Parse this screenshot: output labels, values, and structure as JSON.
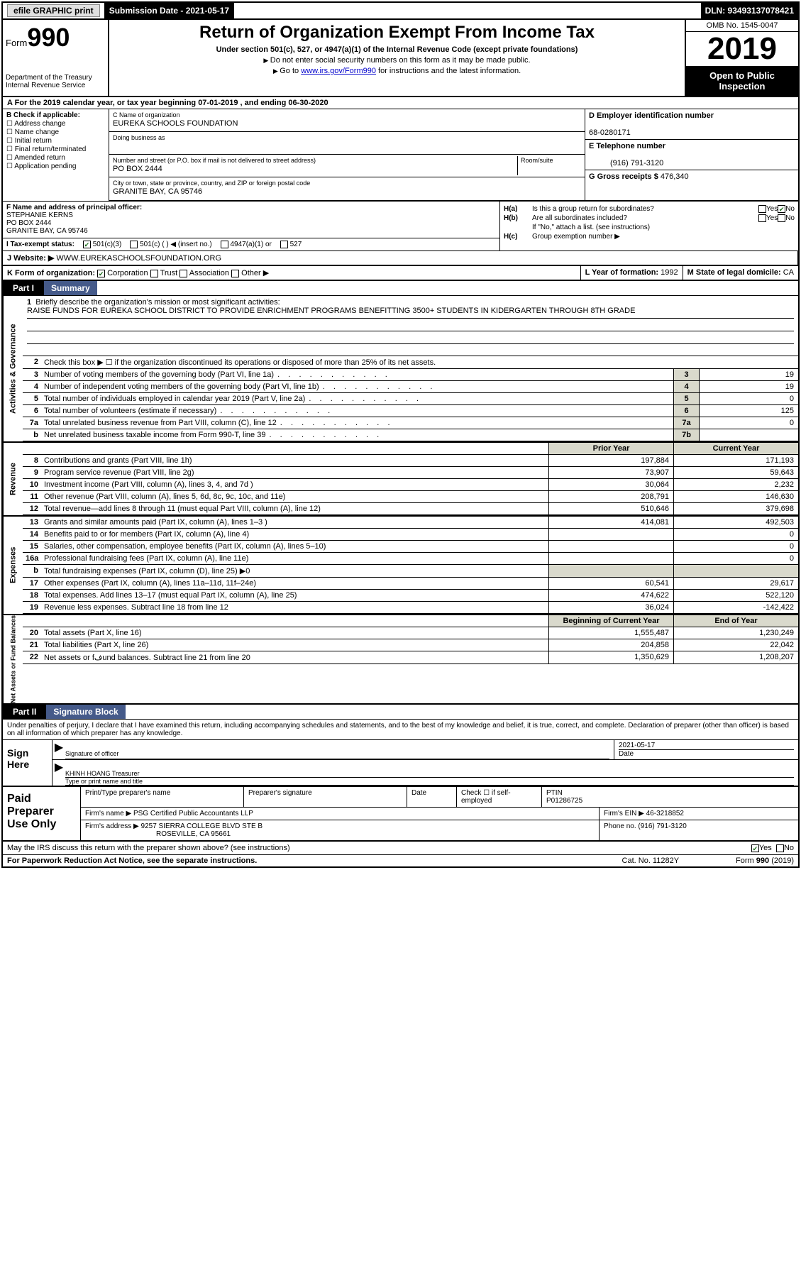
{
  "topbar": {
    "efile": "efile GRAPHIC print",
    "submission_label": "Submission Date - 2021-05-17",
    "dln": "DLN: 93493137078421"
  },
  "header": {
    "form_prefix": "Form",
    "form_number": "990",
    "dept": "Department of the Treasury\nInternal Revenue Service",
    "title": "Return of Organization Exempt From Income Tax",
    "subtitle": "Under section 501(c), 527, or 4947(a)(1) of the Internal Revenue Code (except private foundations)",
    "note1": "Do not enter social security numbers on this form as it may be made public.",
    "note2_pre": "Go to ",
    "note2_link": "www.irs.gov/Form990",
    "note2_post": " for instructions and the latest information.",
    "omb": "OMB No. 1545-0047",
    "year": "2019",
    "inspect": "Open to Public Inspection"
  },
  "rowA": "A For the 2019 calendar year, or tax year beginning 07-01-2019    , and ending 06-30-2020",
  "boxB": {
    "label": "B Check if applicable:",
    "items": [
      "Address change",
      "Name change",
      "Initial return",
      "Final return/terminated",
      "Amended return",
      "Application pending"
    ]
  },
  "boxC": {
    "name_lbl": "C Name of organization",
    "name": "EUREKA SCHOOLS FOUNDATION",
    "dba_lbl": "Doing business as",
    "addr_lbl": "Number and street (or P.O. box if mail is not delivered to street address)",
    "room_lbl": "Room/suite",
    "addr": "PO BOX 2444",
    "city_lbl": "City or town, state or province, country, and ZIP or foreign postal code",
    "city": "GRANITE BAY, CA  95746"
  },
  "boxD": {
    "lbl": "D Employer identification number",
    "val": "68-0280171"
  },
  "boxE": {
    "lbl": "E Telephone number",
    "val": "(916) 791-3120"
  },
  "boxG": {
    "lbl": "G Gross receipts $ ",
    "val": "476,340"
  },
  "boxF": {
    "lbl": "F  Name and address of principal officer:",
    "line1": "STEPHANIE KERNS",
    "line2": "PO BOX 2444",
    "line3": "GRANITE BAY, CA  95746"
  },
  "boxH": {
    "a_lbl": "H(a)",
    "a_txt": "Is this a group return for subordinates?",
    "a_yes": "Yes",
    "a_no": "No",
    "b_lbl": "H(b)",
    "b_txt": "Are all subordinates included?",
    "b_yes": "Yes",
    "b_no": "No",
    "b_note": "If \"No,\" attach a list. (see instructions)",
    "c_lbl": "H(c)",
    "c_txt": "Group exemption number ▶"
  },
  "rowI": {
    "lbl": "I  Tax-exempt status:",
    "opts": [
      "501(c)(3)",
      "501(c) (  ) ◀ (insert no.)",
      "4947(a)(1) or",
      "527"
    ]
  },
  "rowJ": {
    "lbl": "J  Website: ▶",
    "val": "WWW.EUREKASCHOOLSFOUNDATION.ORG"
  },
  "rowK": {
    "lbl": "K Form of organization:",
    "opts": [
      "Corporation",
      "Trust",
      "Association",
      "Other ▶"
    ]
  },
  "rowL": {
    "lbl": "L Year of formation: ",
    "val": "1992"
  },
  "rowM": {
    "lbl": "M State of legal domicile: ",
    "val": "CA"
  },
  "part1_title": "Summary",
  "mission": {
    "num": "1",
    "lbl": "Briefly describe the organization's mission or most significant activities:",
    "txt": "RAISE FUNDS FOR EUREKA SCHOOL DISTRICT TO PROVIDE ENRICHMENT PROGRAMS BENEFITTING 3500+ STUDENTS IN KIDERGARTEN THROUGH 8TH GRADE"
  },
  "line2": "Check this box ▶ ☐  if the organization discontinued its operations or disposed of more than 25% of its net assets.",
  "govrows": [
    {
      "n": "3",
      "t": "Number of voting members of the governing body (Part VI, line 1a)",
      "b": "3",
      "v": "19"
    },
    {
      "n": "4",
      "t": "Number of independent voting members of the governing body (Part VI, line 1b)",
      "b": "4",
      "v": "19"
    },
    {
      "n": "5",
      "t": "Total number of individuals employed in calendar year 2019 (Part V, line 2a)",
      "b": "5",
      "v": "0"
    },
    {
      "n": "6",
      "t": "Total number of volunteers (estimate if necessary)",
      "b": "6",
      "v": "125"
    },
    {
      "n": "7a",
      "t": "Total unrelated business revenue from Part VIII, column (C), line 12",
      "b": "7a",
      "v": "0"
    },
    {
      "n": "b",
      "t": "Net unrelated business taxable income from Form 990-T, line 39",
      "b": "7b",
      "v": ""
    }
  ],
  "colhdr": {
    "c1": "Prior Year",
    "c2": "Current Year"
  },
  "revrows": [
    {
      "n": "8",
      "t": "Contributions and grants (Part VIII, line 1h)",
      "c1": "197,884",
      "c2": "171,193"
    },
    {
      "n": "9",
      "t": "Program service revenue (Part VIII, line 2g)",
      "c1": "73,907",
      "c2": "59,643"
    },
    {
      "n": "10",
      "t": "Investment income (Part VIII, column (A), lines 3, 4, and 7d )",
      "c1": "30,064",
      "c2": "2,232"
    },
    {
      "n": "11",
      "t": "Other revenue (Part VIII, column (A), lines 5, 6d, 8c, 9c, 10c, and 11e)",
      "c1": "208,791",
      "c2": "146,630"
    },
    {
      "n": "12",
      "t": "Total revenue—add lines 8 through 11 (must equal Part VIII, column (A), line 12)",
      "c1": "510,646",
      "c2": "379,698"
    }
  ],
  "exprows": [
    {
      "n": "13",
      "t": "Grants and similar amounts paid (Part IX, column (A), lines 1–3 )",
      "c1": "414,081",
      "c2": "492,503"
    },
    {
      "n": "14",
      "t": "Benefits paid to or for members (Part IX, column (A), line 4)",
      "c1": "",
      "c2": "0"
    },
    {
      "n": "15",
      "t": "Salaries, other compensation, employee benefits (Part IX, column (A), lines 5–10)",
      "c1": "",
      "c2": "0"
    },
    {
      "n": "16a",
      "t": "Professional fundraising fees (Part IX, column (A), line 11e)",
      "c1": "",
      "c2": "0"
    },
    {
      "n": "b",
      "t": "Total fundraising expenses (Part IX, column (D), line 25) ▶0",
      "c1": "grey",
      "c2": "grey"
    },
    {
      "n": "17",
      "t": "Other expenses (Part IX, column (A), lines 11a–11d, 11f–24e)",
      "c1": "60,541",
      "c2": "29,617"
    },
    {
      "n": "18",
      "t": "Total expenses. Add lines 13–17 (must equal Part IX, column (A), line 25)",
      "c1": "474,622",
      "c2": "522,120"
    },
    {
      "n": "19",
      "t": "Revenue less expenses. Subtract line 18 from line 12",
      "c1": "36,024",
      "c2": "-142,422"
    }
  ],
  "nethdr": {
    "c1": "Beginning of Current Year",
    "c2": "End of Year"
  },
  "netrows": [
    {
      "n": "20",
      "t": "Total assets (Part X, line 16)",
      "c1": "1,555,487",
      "c2": "1,230,249"
    },
    {
      "n": "21",
      "t": "Total liabilities (Part X, line 26)",
      "c1": "204,858",
      "c2": "22,042"
    },
    {
      "n": "22",
      "t": "Net assets or fفund balances. Subtract line 21 from line 20",
      "c1": "1,350,629",
      "c2": "1,208,207"
    }
  ],
  "sidelabels": {
    "gov": "Activities & Governance",
    "rev": "Revenue",
    "exp": "Expenses",
    "net": "Net Assets or Fund Balances"
  },
  "part2_title": "Signature Block",
  "declare": "Under penalties of perjury, I declare that I have examined this return, including accompanying schedules and statements, and to the best of my knowledge and belief, it is true, correct, and complete. Declaration of preparer (other than officer) is based on all information of which preparer has any knowledge.",
  "sign": {
    "label": "Sign Here",
    "sig_lbl": "Signature of officer",
    "date": "2021-05-17",
    "date_lbl": "Date",
    "name": "KHINH HOANG  Treasurer",
    "name_lbl": "Type or print name and title"
  },
  "prep": {
    "label": "Paid Preparer Use Only",
    "h1": "Print/Type preparer's name",
    "h2": "Preparer's signature",
    "h3": "Date",
    "h4_pre": "Check ☐ if self-employed",
    "h5_lbl": "PTIN",
    "h5_val": "P01286725",
    "firm_lbl": "Firm's name    ▶ ",
    "firm": "PSG Certified Public Accountants LLP",
    "ein_lbl": "Firm's EIN ▶ ",
    "ein": "46-3218852",
    "addr_lbl": "Firm's address ▶ ",
    "addr1": "9257 SIERRA COLLEGE BLVD STE B",
    "addr2": "ROSEVILLE, CA  95661",
    "phone_lbl": "Phone no. ",
    "phone": "(916) 791-3120"
  },
  "discuss": {
    "txt": "May the IRS discuss this return with the preparer shown above? (see instructions)",
    "yes": "Yes",
    "no": "No"
  },
  "footer": {
    "f1": "For Paperwork Reduction Act Notice, see the separate instructions.",
    "f2": "Cat. No. 11282Y",
    "f3": "Form 990 (2019)"
  }
}
